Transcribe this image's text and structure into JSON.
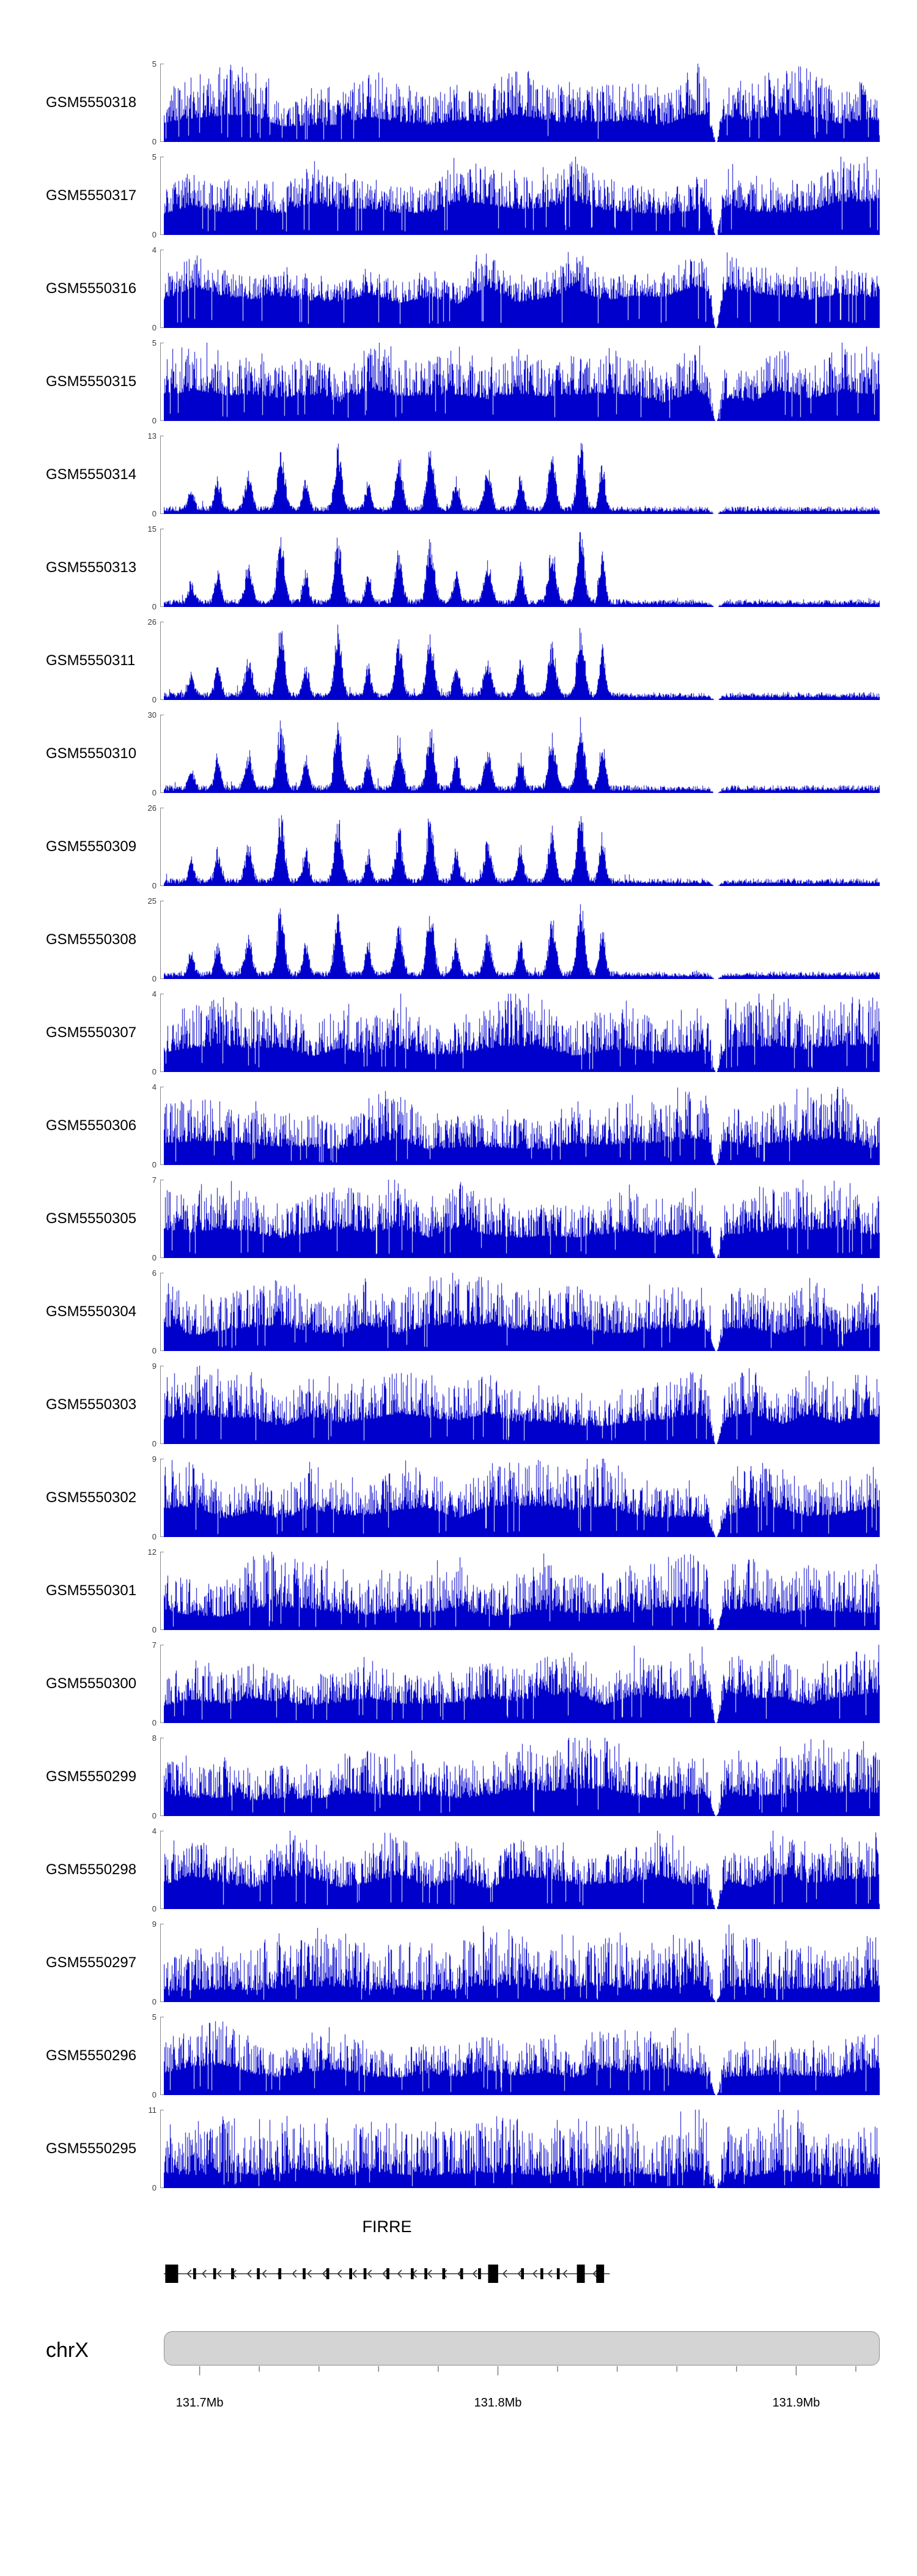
{
  "chart_data": {
    "type": "bar",
    "description": "Genome browser figure: 23 coverage/signal histogram tracks (GEO GSM samples) over the FIRRE locus on chrX, with gene model and chromosome axis",
    "signal_color": "#0000CC",
    "x_range_mb": [
      131.688,
      131.928
    ],
    "x_axis": {
      "major_ticks": [
        {
          "pos_mb": 131.7,
          "label": "131.7Mb"
        },
        {
          "pos_mb": 131.8,
          "label": "131.8Mb"
        },
        {
          "pos_mb": 131.9,
          "label": "131.9Mb"
        }
      ],
      "minor_start_mb": 131.7,
      "minor_end_mb": 131.92,
      "minor_step_mb": 0.02
    },
    "chromosome": {
      "label": "chrX"
    },
    "gene": {
      "name": "FIRRE",
      "strand": "-",
      "span_frac": [
        0.0,
        0.623
      ],
      "exons": [
        {
          "x": 0.002,
          "w": 0.018,
          "tall": true
        },
        {
          "x": 0.041,
          "w": 0.004,
          "tall": false
        },
        {
          "x": 0.069,
          "w": 0.004,
          "tall": false
        },
        {
          "x": 0.094,
          "w": 0.004,
          "tall": false
        },
        {
          "x": 0.13,
          "w": 0.004,
          "tall": false
        },
        {
          "x": 0.16,
          "w": 0.004,
          "tall": false
        },
        {
          "x": 0.194,
          "w": 0.004,
          "tall": false
        },
        {
          "x": 0.227,
          "w": 0.004,
          "tall": false
        },
        {
          "x": 0.259,
          "w": 0.004,
          "tall": false
        },
        {
          "x": 0.279,
          "w": 0.004,
          "tall": false
        },
        {
          "x": 0.311,
          "w": 0.004,
          "tall": false
        },
        {
          "x": 0.345,
          "w": 0.004,
          "tall": false
        },
        {
          "x": 0.364,
          "w": 0.004,
          "tall": false
        },
        {
          "x": 0.389,
          "w": 0.004,
          "tall": false
        },
        {
          "x": 0.414,
          "w": 0.004,
          "tall": false
        },
        {
          "x": 0.439,
          "w": 0.004,
          "tall": false
        },
        {
          "x": 0.453,
          "w": 0.014,
          "tall": true
        },
        {
          "x": 0.499,
          "w": 0.004,
          "tall": false
        },
        {
          "x": 0.526,
          "w": 0.004,
          "tall": false
        },
        {
          "x": 0.549,
          "w": 0.004,
          "tall": false
        },
        {
          "x": 0.577,
          "w": 0.011,
          "tall": true
        },
        {
          "x": 0.604,
          "w": 0.011,
          "tall": true
        }
      ]
    },
    "gap_frac": 0.771,
    "shared_peaks": [
      {
        "x": 0.038,
        "h": 0.3,
        "w": 0.004
      },
      {
        "x": 0.075,
        "h": 0.45,
        "w": 0.004
      },
      {
        "x": 0.118,
        "h": 0.5,
        "w": 0.005
      },
      {
        "x": 0.163,
        "h": 0.92,
        "w": 0.005
      },
      {
        "x": 0.198,
        "h": 0.45,
        "w": 0.004
      },
      {
        "x": 0.243,
        "h": 0.88,
        "w": 0.005
      },
      {
        "x": 0.285,
        "h": 0.4,
        "w": 0.004
      },
      {
        "x": 0.328,
        "h": 0.7,
        "w": 0.005
      },
      {
        "x": 0.372,
        "h": 0.85,
        "w": 0.005
      },
      {
        "x": 0.408,
        "h": 0.45,
        "w": 0.004
      },
      {
        "x": 0.452,
        "h": 0.55,
        "w": 0.005
      },
      {
        "x": 0.498,
        "h": 0.5,
        "w": 0.004
      },
      {
        "x": 0.542,
        "h": 0.75,
        "w": 0.005
      },
      {
        "x": 0.582,
        "h": 0.95,
        "w": 0.005
      },
      {
        "x": 0.612,
        "h": 0.65,
        "w": 0.004
      }
    ],
    "tracks": [
      {
        "label": "GSM5550318",
        "ymax": 5,
        "ymin": 0,
        "pattern": "dense",
        "density": 0.35
      },
      {
        "label": "GSM5550317",
        "ymax": 5,
        "ymin": 0,
        "pattern": "dense",
        "density": 0.45
      },
      {
        "label": "GSM5550316",
        "ymax": 4,
        "ymin": 0,
        "pattern": "dense",
        "density": 0.55
      },
      {
        "label": "GSM5550315",
        "ymax": 5,
        "ymin": 0,
        "pattern": "dense",
        "density": 0.4
      },
      {
        "label": "GSM5550314",
        "ymax": 13,
        "ymin": 0,
        "pattern": "peaks",
        "density": 0.0
      },
      {
        "label": "GSM5550313",
        "ymax": 15,
        "ymin": 0,
        "pattern": "peaks",
        "density": 0.0
      },
      {
        "label": "GSM5550311",
        "ymax": 26,
        "ymin": 0,
        "pattern": "peaks",
        "density": 0.0
      },
      {
        "label": "GSM5550310",
        "ymax": 30,
        "ymin": 0,
        "pattern": "peaks",
        "density": 0.0
      },
      {
        "label": "GSM5550309",
        "ymax": 26,
        "ymin": 0,
        "pattern": "peaks",
        "density": 0.0
      },
      {
        "label": "GSM5550308",
        "ymax": 25,
        "ymin": 0,
        "pattern": "peaks",
        "density": 0.0
      },
      {
        "label": "GSM5550307",
        "ymax": 4,
        "ymin": 0,
        "pattern": "dense",
        "density": 0.35
      },
      {
        "label": "GSM5550306",
        "ymax": 4,
        "ymin": 0,
        "pattern": "dense",
        "density": 0.35
      },
      {
        "label": "GSM5550305",
        "ymax": 7,
        "ymin": 0,
        "pattern": "dense",
        "density": 0.4
      },
      {
        "label": "GSM5550304",
        "ymax": 6,
        "ymin": 0,
        "pattern": "dense",
        "density": 0.35
      },
      {
        "label": "GSM5550303",
        "ymax": 9,
        "ymin": 0,
        "pattern": "dense",
        "density": 0.4
      },
      {
        "label": "GSM5550302",
        "ymax": 9,
        "ymin": 0,
        "pattern": "dense",
        "density": 0.4
      },
      {
        "label": "GSM5550301",
        "ymax": 12,
        "ymin": 0,
        "pattern": "dense",
        "density": 0.3
      },
      {
        "label": "GSM5550300",
        "ymax": 7,
        "ymin": 0,
        "pattern": "dense",
        "density": 0.4
      },
      {
        "label": "GSM5550299",
        "ymax": 8,
        "ymin": 0,
        "pattern": "dense",
        "density": 0.35
      },
      {
        "label": "GSM5550298",
        "ymax": 4,
        "ymin": 0,
        "pattern": "dense",
        "density": 0.45
      },
      {
        "label": "GSM5550297",
        "ymax": 9,
        "ymin": 0,
        "pattern": "dense",
        "density": 0.22
      },
      {
        "label": "GSM5550296",
        "ymax": 5,
        "ymin": 0,
        "pattern": "dense",
        "density": 0.4
      },
      {
        "label": "GSM5550295",
        "ymax": 11,
        "ymin": 0,
        "pattern": "dense",
        "density": 0.22
      }
    ]
  }
}
